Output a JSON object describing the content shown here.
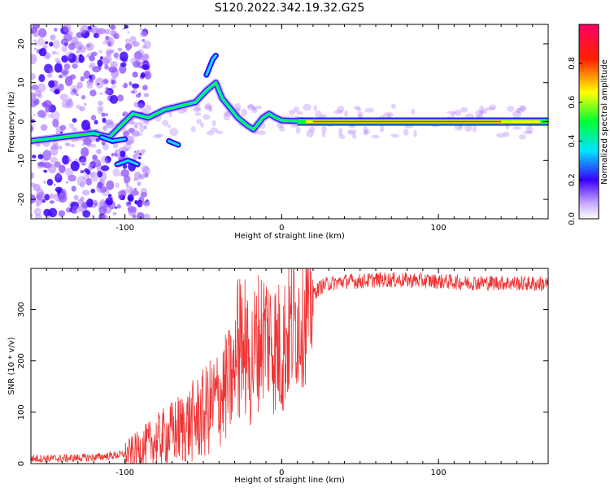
{
  "title": "S120.2022.342.19.32.G25",
  "chart_data": [
    {
      "type": "heatmap",
      "xlabel": "Height of straight line (km)",
      "ylabel": "Frequency (Hz)",
      "xlim": [
        -160,
        170
      ],
      "ylim": [
        -25,
        25
      ],
      "xticks": [
        -100,
        0,
        100
      ],
      "yticks": [
        -20,
        -10,
        0,
        10,
        20
      ],
      "colorbar": {
        "label": "Normalized spectral amplitude",
        "range": [
          0,
          1
        ],
        "ticks": [
          "0.0",
          "0.2",
          "0.4",
          "0.6",
          "0.8"
        ],
        "colors": [
          "#ffffff",
          "#b07cff",
          "#3a00ff",
          "#00e5ff",
          "#00ff33",
          "#ffff00",
          "#ff2200",
          "#ff0066"
        ]
      },
      "ridge": {
        "x": [
          -160,
          -140,
          -120,
          -110,
          -95,
          -85,
          -75,
          -65,
          -55,
          -48,
          -42,
          -38,
          -32,
          -28,
          -22,
          -18,
          -12,
          -8,
          -4,
          0,
          20,
          60,
          100,
          140,
          170
        ],
        "y": [
          -5,
          -4,
          -3,
          -4,
          2,
          1,
          3,
          4,
          5,
          8,
          10,
          6,
          3,
          1,
          -1,
          -2,
          1,
          2,
          1,
          0.3,
          0,
          0,
          0,
          0,
          0
        ]
      }
    },
    {
      "type": "line",
      "xlabel": "Height of straight line (km)",
      "ylabel": "SNR (10 * v/v)",
      "xlim": [
        -160,
        170
      ],
      "ylim": [
        0,
        380
      ],
      "xticks": [
        -100,
        0,
        100
      ],
      "yticks": [
        0,
        100,
        200,
        300
      ],
      "color": "#ee3333",
      "series": [
        {
          "x": [
            -160,
            -140,
            -120,
            -100,
            -90,
            -80,
            -70,
            -60,
            -50,
            -40,
            -30,
            -25,
            -20,
            -15,
            -10,
            -5,
            0,
            5,
            10,
            15,
            20,
            25,
            30,
            40,
            50,
            60,
            80,
            100,
            120,
            140,
            160,
            170
          ],
          "values": [
            10,
            10,
            12,
            18,
            30,
            45,
            60,
            75,
            95,
            130,
            170,
            210,
            190,
            240,
            260,
            230,
            220,
            260,
            280,
            290,
            330,
            345,
            350,
            355,
            355,
            358,
            357,
            355,
            352,
            352,
            350,
            350
          ]
        }
      ]
    }
  ]
}
